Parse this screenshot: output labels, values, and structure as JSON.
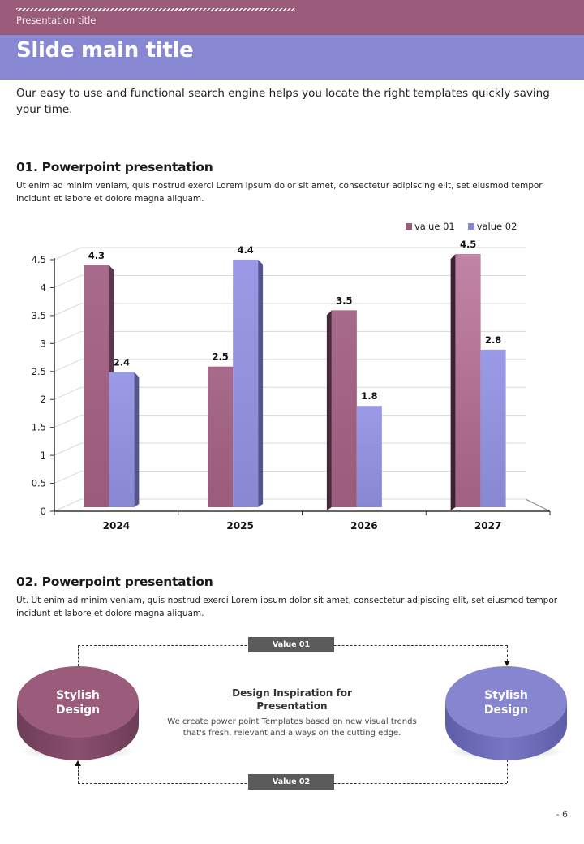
{
  "header": {
    "presentation_title": "Presentation title",
    "slide_title": "Slide main title"
  },
  "intro": "Our easy to use and functional search engine helps you locate the right templates quickly saving your time.",
  "section1": {
    "title": "01. Powerpoint presentation",
    "body": "Ut enim ad minim veniam, quis nostrud exerci  Lorem ipsum dolor sit amet, consectetur adipiscing elit, set eiusmod tempor incidunt et labore et dolore magna aliquam."
  },
  "section2": {
    "title": "02. Powerpoint presentation",
    "body": "Ut. Ut enim ad minim veniam, quis nostrud exerci  Lorem ipsum dolor sit amet, consectetur adipiscing elit, set eiusmod tempor incidunt et labore et dolore magna aliquam."
  },
  "colors": {
    "series1": "#9b5b7b",
    "series2": "#8888d2",
    "header_top": "#9b5b7b",
    "header_title": "#8888d2",
    "tag": "#5b5b5b"
  },
  "chart_data": {
    "type": "bar",
    "title": "",
    "xlabel": "",
    "ylabel": "",
    "categories": [
      "2024",
      "2025",
      "2026",
      "2027"
    ],
    "series": [
      {
        "name": "value 01",
        "values": [
          4.3,
          2.5,
          3.5,
          4.5
        ]
      },
      {
        "name": "value 02",
        "values": [
          2.4,
          4.4,
          1.8,
          2.8
        ]
      }
    ],
    "ylim": [
      0,
      4.5
    ],
    "yticks": [
      "0",
      "0.5",
      "1",
      "1.5",
      "2",
      "2.5",
      "3",
      "3.5",
      "4",
      "4.5"
    ],
    "grid": true,
    "legend_position": "top-right",
    "data_labels": true,
    "style": "3d-clustered-column"
  },
  "diagram": {
    "left_disc": {
      "line1": "Stylish",
      "line2": "Design"
    },
    "right_disc": {
      "line1": "Stylish",
      "line2": "Design"
    },
    "tag_top": "Value 01",
    "tag_bottom": "Value 02",
    "center_title_line1": "Design Inspiration for",
    "center_title_line2": "Presentation",
    "center_body_line1": "We create power point Templates based on new visual trends",
    "center_body_line2": "that's fresh, relevant and always on the cutting edge."
  },
  "page_number": "- 6"
}
